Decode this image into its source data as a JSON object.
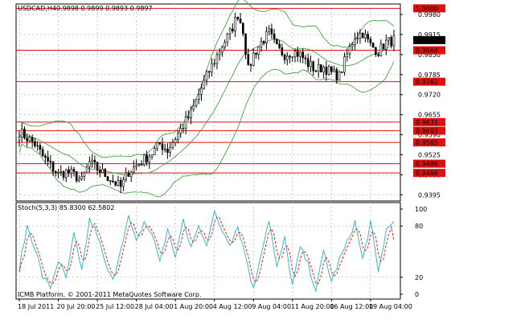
{
  "header": {
    "symbol": "USDCAD,H4",
    "ohlc": "0.9898 0.9899 0.9893 0.9897"
  },
  "footer": {
    "copyright": "ICMB Platform, © 2001-2011 MetaQuotes Software Corp."
  },
  "colors": {
    "candle": "#000000",
    "bollinger": "#2f9a2f",
    "hline": "#e01010",
    "grid": "#c8c8c8",
    "stoch_main": "#38b8c8",
    "stoch_signal": "#e02020",
    "label_bg": "#e01010",
    "label_fg": "#ffffff",
    "last_price_bg": "#000000"
  },
  "chart_data": [
    {
      "type": "candlestick",
      "title": "USDCAD,H4 0.9898 0.9899 0.9893 0.9897",
      "x_tick_labels": [
        "18 Jul 2011",
        "20 Jul 20:00",
        "25 Jul 12:00",
        "28 Jul 04:00",
        "1 Aug 20:00",
        "4 Aug 12:00",
        "9 Aug 04:00",
        "11 Aug 20:00",
        "16 Aug 12:00",
        "19 Aug 04:00"
      ],
      "y_tick_labels": [
        "0.9980",
        "0.9915",
        "0.9850",
        "0.9785",
        "0.9720",
        "0.9655",
        "0.9590",
        "0.9525",
        "0.9460",
        "0.9395"
      ],
      "ylim": [
        0.9375,
        1.0014
      ],
      "grid": true,
      "horizontal_levels": [
        1.0,
        0.9864,
        0.9762,
        0.9631,
        0.9603,
        0.9565,
        0.9496,
        0.9466
      ],
      "level_labels": [
        "1.0000",
        "0.9864",
        "0.9762",
        "0.9631",
        "0.9603",
        "0.9565",
        "0.9496",
        "0.9466"
      ],
      "last_price": "0.9897",
      "last_price_value": 0.9897,
      "indicators": [
        "Bollinger Bands"
      ],
      "close_anchors": [
        [
          0,
          0.96
        ],
        [
          3,
          0.958
        ],
        [
          6,
          0.956
        ],
        [
          9,
          0.952
        ],
        [
          12,
          0.949
        ],
        [
          15,
          0.946
        ],
        [
          18,
          0.947
        ],
        [
          21,
          0.946
        ],
        [
          24,
          0.944
        ],
        [
          27,
          0.95
        ],
        [
          30,
          0.948
        ],
        [
          33,
          0.946
        ],
        [
          36,
          0.944
        ],
        [
          39,
          0.942
        ],
        [
          42,
          0.947
        ],
        [
          45,
          0.949
        ],
        [
          48,
          0.951
        ],
        [
          51,
          0.953
        ],
        [
          54,
          0.956
        ],
        [
          57,
          0.954
        ],
        [
          60,
          0.958
        ],
        [
          63,
          0.962
        ],
        [
          66,
          0.966
        ],
        [
          69,
          0.972
        ],
        [
          72,
          0.978
        ],
        [
          75,
          0.983
        ],
        [
          78,
          0.988
        ],
        [
          81,
          0.992
        ],
        [
          84,
          0.998
        ],
        [
          86,
          0.993
        ],
        [
          88,
          0.98
        ],
        [
          90,
          0.985
        ],
        [
          93,
          0.989
        ],
        [
          96,
          0.992
        ],
        [
          99,
          0.987
        ],
        [
          102,
          0.985
        ],
        [
          105,
          0.986
        ],
        [
          108,
          0.985
        ],
        [
          111,
          0.982
        ],
        [
          114,
          0.98
        ],
        [
          117,
          0.981
        ],
        [
          120,
          0.979
        ],
        [
          123,
          0.978
        ],
        [
          126,
          0.985
        ],
        [
          129,
          0.991
        ],
        [
          132,
          0.992
        ],
        [
          135,
          0.988
        ],
        [
          138,
          0.986
        ],
        [
          141,
          0.989
        ],
        [
          144,
          0.9897
        ]
      ],
      "bar_count": 145
    },
    {
      "type": "line",
      "title": "Stoch(5,3,3) 85.8300 62.5802",
      "y_tick_labels": [
        "100",
        "80",
        "20",
        "0"
      ],
      "ylim": [
        0,
        100
      ],
      "levels": [
        80,
        20
      ],
      "series": [
        {
          "name": "Stoch(5,3,3) main",
          "last": 85.83
        },
        {
          "name": "Stoch(5,3,3) signal",
          "last": 62.5802
        }
      ],
      "main_anchors": [
        [
          0,
          30
        ],
        [
          3,
          80
        ],
        [
          6,
          55
        ],
        [
          9,
          20
        ],
        [
          12,
          8
        ],
        [
          15,
          40
        ],
        [
          18,
          18
        ],
        [
          21,
          70
        ],
        [
          24,
          25
        ],
        [
          27,
          88
        ],
        [
          30,
          70
        ],
        [
          33,
          35
        ],
        [
          36,
          15
        ],
        [
          39,
          55
        ],
        [
          42,
          90
        ],
        [
          45,
          60
        ],
        [
          48,
          85
        ],
        [
          51,
          70
        ],
        [
          54,
          40
        ],
        [
          57,
          75
        ],
        [
          60,
          45
        ],
        [
          63,
          85
        ],
        [
          66,
          55
        ],
        [
          69,
          80
        ],
        [
          72,
          60
        ],
        [
          75,
          95
        ],
        [
          78,
          75
        ],
        [
          81,
          60
        ],
        [
          84,
          80
        ],
        [
          87,
          45
        ],
        [
          90,
          5
        ],
        [
          93,
          50
        ],
        [
          96,
          88
        ],
        [
          99,
          30
        ],
        [
          102,
          65
        ],
        [
          105,
          10
        ],
        [
          108,
          55
        ],
        [
          111,
          35
        ],
        [
          114,
          5
        ],
        [
          117,
          50
        ],
        [
          120,
          15
        ],
        [
          123,
          40
        ],
        [
          126,
          60
        ],
        [
          129,
          85
        ],
        [
          132,
          40
        ],
        [
          135,
          85
        ],
        [
          138,
          25
        ],
        [
          141,
          75
        ],
        [
          144,
          85.83
        ]
      ]
    }
  ]
}
